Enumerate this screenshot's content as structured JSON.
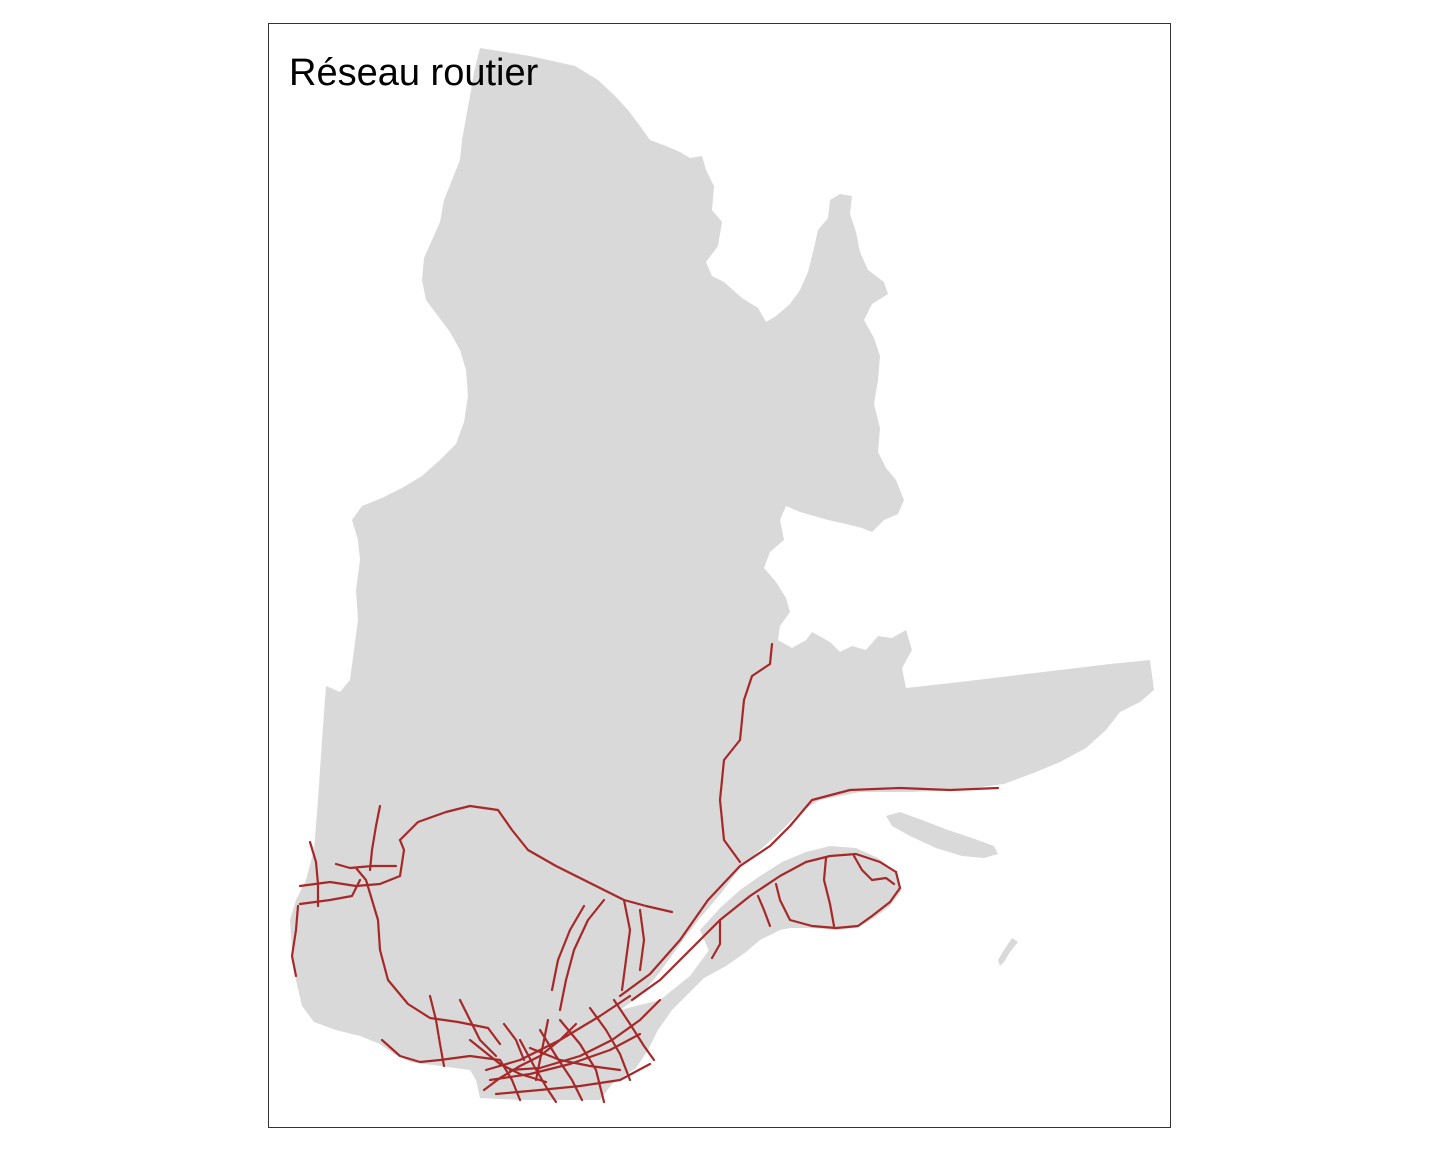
{
  "map": {
    "title": "Réseau routier",
    "colors": {
      "land": "#d9d9d9",
      "road": "#a62828",
      "frame": "#333333",
      "background": "#ffffff"
    }
  }
}
